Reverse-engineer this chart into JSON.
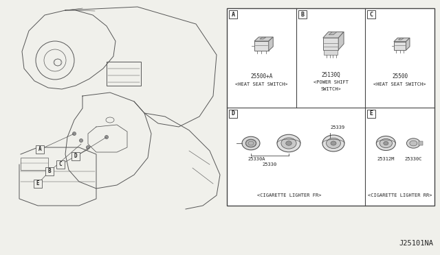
{
  "bg_color": "#f0f0eb",
  "white": "#ffffff",
  "border_color": "#444444",
  "text_color": "#222222",
  "line_color": "#555555",
  "diagram_ref": "J25101NA",
  "panel_A_pn": "25500+A",
  "panel_A_desc": "<HEAT SEAT SWITCH>",
  "panel_B_pn": "25130Q",
  "panel_B_desc1": "<POWER SHIFT",
  "panel_B_desc2": "SWITCH>",
  "panel_C_pn": "25500",
  "panel_C_desc": "<HEAT SEAT SWITCH>",
  "panel_D_pn1": "25330A",
  "panel_D_pn2": "25330",
  "panel_D_pn3": "25339",
  "panel_D_desc": "<CIGARETTE LIGHTER FR>",
  "panel_E_pn1": "25312M",
  "panel_E_pn2": "25330C",
  "panel_E_desc": "<CIGARETTE LIGHTER RR>"
}
